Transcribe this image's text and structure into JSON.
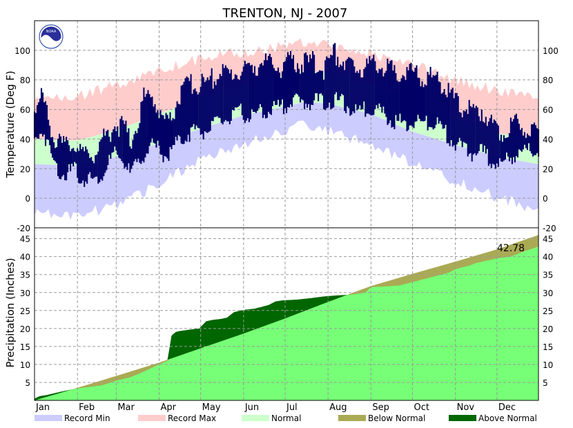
{
  "chart_data": [
    {
      "type": "area",
      "panel": "temperature",
      "title": "TRENTON, NJ - 2007",
      "ylabel": "Temperature (Deg F)",
      "ylim": [
        -20,
        120
      ],
      "yticks": [
        -20,
        0,
        20,
        40,
        60,
        80,
        100
      ],
      "grid": true,
      "x_unit": "day of year",
      "xlim": [
        1,
        365
      ],
      "month_labels": [
        "Jan",
        "Feb",
        "Mar",
        "Apr",
        "May",
        "Jun",
        "Jul",
        "Aug",
        "Sep",
        "Oct",
        "Nov",
        "Dec"
      ],
      "month_start_days": [
        1,
        32,
        60,
        91,
        121,
        152,
        182,
        213,
        244,
        274,
        305,
        335
      ],
      "series": [
        {
          "name": "Record Max",
          "color": "#FFCCCC",
          "profile": {
            "day": [
              1,
              32,
              60,
              91,
              121,
              152,
              182,
              196,
              213,
              244,
              274,
              305,
              335,
              365
            ],
            "value": [
              67,
              68,
              76,
              86,
              93,
              98,
              102,
              104,
              102,
              97,
              89,
              79,
              72,
              67
            ]
          }
        },
        {
          "name": "Normal",
          "color": "#CCFFCC",
          "high": {
            "day": [
              1,
              32,
              60,
              91,
              121,
              152,
              182,
              196,
              213,
              244,
              274,
              305,
              335,
              365
            ],
            "value": [
              40,
              39,
              46,
              57,
              68,
              77,
              83,
              86,
              85,
              77,
              66,
              54,
              44,
              40
            ]
          },
          "low": {
            "day": [
              1,
              32,
              60,
              91,
              121,
              152,
              182,
              196,
              213,
              244,
              274,
              305,
              335,
              365
            ],
            "value": [
              23,
              22,
              28,
              37,
              47,
              56,
              62,
              65,
              64,
              57,
              45,
              36,
              28,
              23
            ]
          }
        },
        {
          "name": "Record Min",
          "color": "#CCCCFF",
          "profile": {
            "day": [
              1,
              20,
              32,
              60,
              91,
              121,
              152,
              182,
              196,
              213,
              244,
              274,
              305,
              335,
              365
            ],
            "value": [
              -7,
              -12,
              -10,
              -4,
              10,
              28,
              38,
              47,
              52,
              47,
              37,
              25,
              13,
              2,
              -7
            ]
          }
        },
        {
          "name": "Observed",
          "color": "#000066",
          "samples": [
            {
              "day": 1,
              "low": 38,
              "high": 60
            },
            {
              "day": 7,
              "low": 47,
              "high": 68
            },
            {
              "day": 12,
              "low": 32,
              "high": 52
            },
            {
              "day": 16,
              "low": 22,
              "high": 40
            },
            {
              "day": 21,
              "low": 17,
              "high": 34
            },
            {
              "day": 26,
              "low": 17,
              "high": 36
            },
            {
              "day": 30,
              "low": 20,
              "high": 38
            },
            {
              "day": 35,
              "low": 12,
              "high": 28
            },
            {
              "day": 40,
              "low": 14,
              "high": 32
            },
            {
              "day": 45,
              "low": 12,
              "high": 30
            },
            {
              "day": 50,
              "low": 16,
              "high": 40
            },
            {
              "day": 55,
              "low": 25,
              "high": 45
            },
            {
              "day": 60,
              "low": 30,
              "high": 50
            },
            {
              "day": 66,
              "low": 24,
              "high": 48
            },
            {
              "day": 70,
              "low": 17,
              "high": 38
            },
            {
              "day": 75,
              "low": 22,
              "high": 50
            },
            {
              "day": 80,
              "low": 30,
              "high": 68
            },
            {
              "day": 86,
              "low": 35,
              "high": 70
            },
            {
              "day": 91,
              "low": 33,
              "high": 58
            },
            {
              "day": 96,
              "low": 28,
              "high": 52
            },
            {
              "day": 100,
              "low": 33,
              "high": 54
            },
            {
              "day": 105,
              "low": 38,
              "high": 70
            },
            {
              "day": 110,
              "low": 42,
              "high": 74
            },
            {
              "day": 116,
              "low": 46,
              "high": 78
            },
            {
              "day": 121,
              "low": 45,
              "high": 76
            },
            {
              "day": 128,
              "low": 47,
              "high": 80
            },
            {
              "day": 135,
              "low": 52,
              "high": 85
            },
            {
              "day": 142,
              "low": 54,
              "high": 84
            },
            {
              "day": 150,
              "low": 58,
              "high": 86
            },
            {
              "day": 157,
              "low": 55,
              "high": 88
            },
            {
              "day": 165,
              "low": 58,
              "high": 92
            },
            {
              "day": 172,
              "low": 60,
              "high": 90
            },
            {
              "day": 180,
              "low": 62,
              "high": 88
            },
            {
              "day": 188,
              "low": 66,
              "high": 94
            },
            {
              "day": 195,
              "low": 64,
              "high": 90
            },
            {
              "day": 202,
              "low": 66,
              "high": 92
            },
            {
              "day": 210,
              "low": 65,
              "high": 88
            },
            {
              "day": 218,
              "low": 66,
              "high": 98
            },
            {
              "day": 225,
              "low": 64,
              "high": 92
            },
            {
              "day": 232,
              "low": 58,
              "high": 86
            },
            {
              "day": 240,
              "low": 60,
              "high": 90
            },
            {
              "day": 247,
              "low": 62,
              "high": 92
            },
            {
              "day": 255,
              "low": 55,
              "high": 88
            },
            {
              "day": 262,
              "low": 52,
              "high": 84
            },
            {
              "day": 270,
              "low": 50,
              "high": 86
            },
            {
              "day": 277,
              "low": 52,
              "high": 84
            },
            {
              "day": 284,
              "low": 50,
              "high": 80
            },
            {
              "day": 290,
              "low": 52,
              "high": 82
            },
            {
              "day": 297,
              "low": 45,
              "high": 76
            },
            {
              "day": 304,
              "low": 38,
              "high": 66
            },
            {
              "day": 310,
              "low": 34,
              "high": 62
            },
            {
              "day": 317,
              "low": 30,
              "high": 58
            },
            {
              "day": 324,
              "low": 32,
              "high": 60
            },
            {
              "day": 331,
              "low": 26,
              "high": 50
            },
            {
              "day": 338,
              "low": 22,
              "high": 45
            },
            {
              "day": 345,
              "low": 28,
              "high": 50
            },
            {
              "day": 352,
              "low": 30,
              "high": 50
            },
            {
              "day": 358,
              "low": 32,
              "high": 48
            },
            {
              "day": 365,
              "low": 34,
              "high": 46
            }
          ]
        }
      ]
    },
    {
      "type": "area",
      "panel": "precipitation",
      "ylabel": "Precipitation (Inches)",
      "ylim": [
        0,
        48
      ],
      "yticks": [
        5,
        10,
        15,
        20,
        25,
        30,
        35,
        40,
        45
      ],
      "grid": true,
      "annotation": "42.78",
      "series": [
        {
          "name": "Normal",
          "color": "#77FF77",
          "day": [
            1,
            32,
            60,
            91,
            121,
            152,
            182,
            213,
            244,
            274,
            305,
            335,
            365
          ],
          "value": [
            0,
            3.5,
            6.8,
            10.5,
            14.5,
            18.6,
            22.8,
            27.4,
            31.8,
            35.2,
            38.6,
            42.0,
            46.0
          ]
        },
        {
          "name": "Observed",
          "day": [
            1,
            5,
            10,
            20,
            30,
            40,
            50,
            60,
            70,
            80,
            91,
            97,
            100,
            103,
            106,
            110,
            120,
            125,
            130,
            135,
            140,
            145,
            150,
            155,
            160,
            165,
            170,
            175,
            180,
            190,
            200,
            210,
            220,
            230,
            240,
            244,
            250,
            255,
            265,
            270,
            275,
            290,
            300,
            305,
            315,
            320,
            335,
            345,
            355,
            365
          ],
          "value": [
            0.5,
            1.2,
            1.5,
            2.4,
            3.2,
            3.7,
            4.2,
            5.5,
            6.4,
            8.0,
            10.0,
            11.0,
            18.0,
            19.0,
            19.3,
            19.5,
            20.0,
            22.0,
            22.4,
            22.6,
            23.0,
            24.5,
            25.0,
            25.3,
            25.5,
            26.0,
            26.5,
            27.5,
            27.8,
            28.0,
            28.4,
            28.9,
            29.2,
            29.4,
            30.0,
            31.5,
            31.6,
            31.7,
            32.0,
            32.5,
            33.0,
            34.5,
            35.5,
            36.5,
            37.5,
            38.2,
            39.5,
            40.0,
            41.5,
            42.78
          ]
        }
      ]
    }
  ],
  "legend": [
    {
      "label": "Record Min",
      "color": "#CCCCFF"
    },
    {
      "label": "Record Max",
      "color": "#FFCCCC"
    },
    {
      "label": "Normal",
      "color": "#CCFFCC"
    },
    {
      "label": "Below Normal",
      "color": "#AAAA55"
    },
    {
      "label": "Above Normal",
      "color": "#006600"
    }
  ],
  "colors": {
    "observed_temp": "#000066",
    "precip_normal": "#77FF77",
    "above_normal": "#006600",
    "below_normal": "#AAAA55",
    "grid": "#999999"
  },
  "logo": {
    "name": "NOAA",
    "text": "NOAA"
  }
}
